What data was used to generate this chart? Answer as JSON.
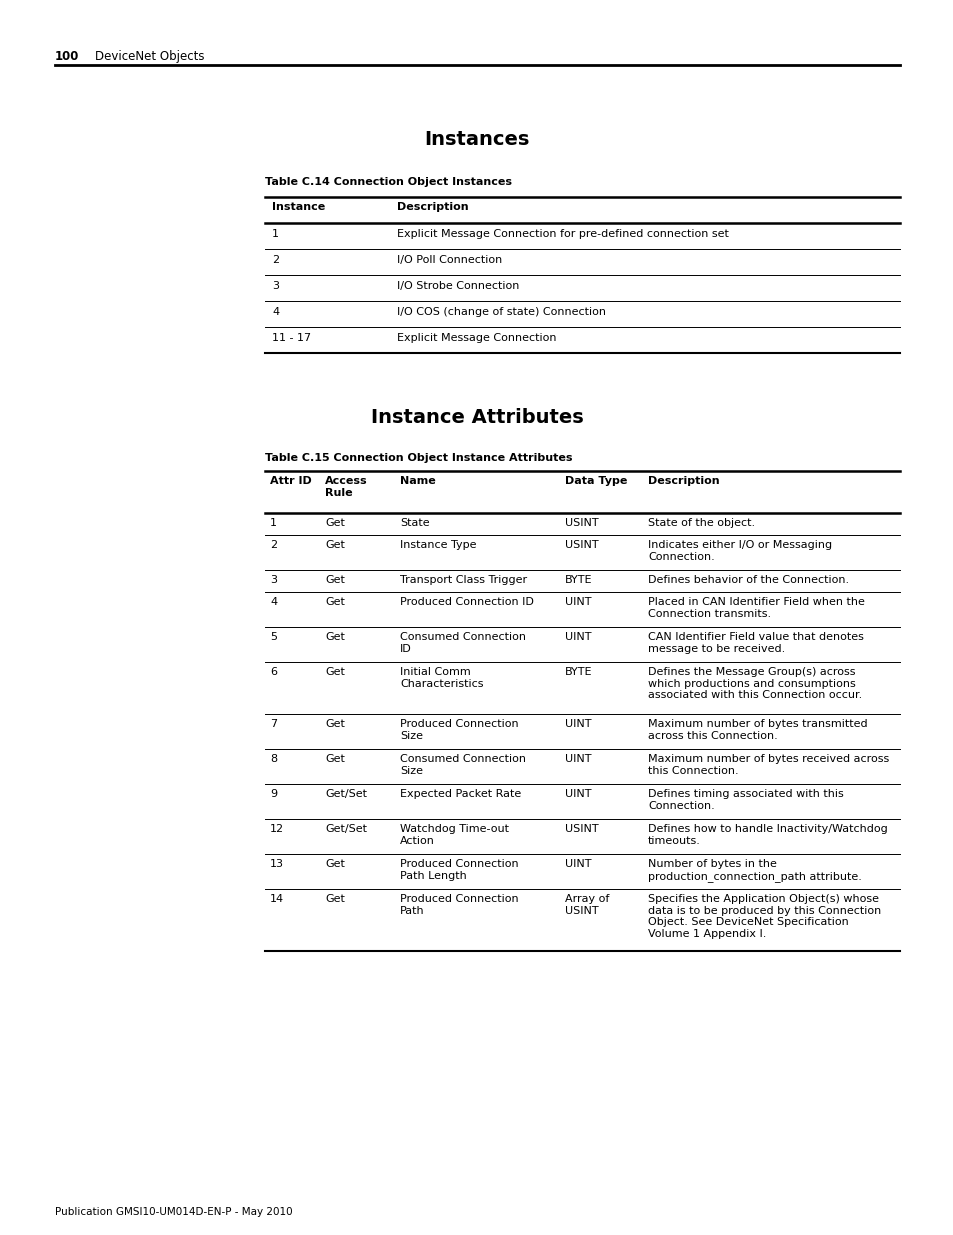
{
  "page_number": "100",
  "page_header": "DeviceNet Objects",
  "page_footer": "Publication GMSI10-UM014D-EN-P - May 2010",
  "section1_title": "Instances",
  "table1_label": "Table C.14 Connection Object Instances",
  "table1_headers": [
    "Instance",
    "Description"
  ],
  "table1_rows": [
    [
      "1",
      "Explicit Message Connection for pre-defined connection set"
    ],
    [
      "2",
      "I/O Poll Connection"
    ],
    [
      "3",
      "I/O Strobe Connection"
    ],
    [
      "4",
      "I/O COS (change of state) Connection"
    ],
    [
      "11 - 17",
      "Explicit Message Connection"
    ]
  ],
  "section2_title": "Instance Attributes",
  "table2_label": "Table C.15 Connection Object Instance Attributes",
  "table2_rows": [
    [
      "1",
      "Get",
      "State",
      "USINT",
      "State of the object."
    ],
    [
      "2",
      "Get",
      "Instance Type",
      "USINT",
      "Indicates either I/O or Messaging\nConnection."
    ],
    [
      "3",
      "Get",
      "Transport Class Trigger",
      "BYTE",
      "Defines behavior of the Connection."
    ],
    [
      "4",
      "Get",
      "Produced Connection ID",
      "UINT",
      "Placed in CAN Identifier Field when the\nConnection transmits."
    ],
    [
      "5",
      "Get",
      "Consumed Connection\nID",
      "UINT",
      "CAN Identifier Field value that denotes\nmessage to be received."
    ],
    [
      "6",
      "Get",
      "Initial Comm\nCharacteristics",
      "BYTE",
      "Defines the Message Group(s) across\nwhich productions and consumptions\nassociated with this Connection occur."
    ],
    [
      "7",
      "Get",
      "Produced Connection\nSize",
      "UINT",
      "Maximum number of bytes transmitted\nacross this Connection."
    ],
    [
      "8",
      "Get",
      "Consumed Connection\nSize",
      "UINT",
      "Maximum number of bytes received across\nthis Connection."
    ],
    [
      "9",
      "Get/Set",
      "Expected Packet Rate",
      "UINT",
      "Defines timing associated with this\nConnection."
    ],
    [
      "12",
      "Get/Set",
      "Watchdog Time-out\nAction",
      "USINT",
      "Defines how to handle Inactivity/Watchdog\ntimeouts."
    ],
    [
      "13",
      "Get",
      "Produced Connection\nPath Length",
      "UINT",
      "Number of bytes in the\nproduction_connection_path attribute."
    ],
    [
      "14",
      "Get",
      "Produced Connection\nPath",
      "Array of\nUSINT",
      "Specifies the Application Object(s) whose\ndata is to be produced by this Connection\nObject. See DeviceNet Specification\nVolume 1 Appendix I."
    ]
  ],
  "background_color": "#ffffff"
}
